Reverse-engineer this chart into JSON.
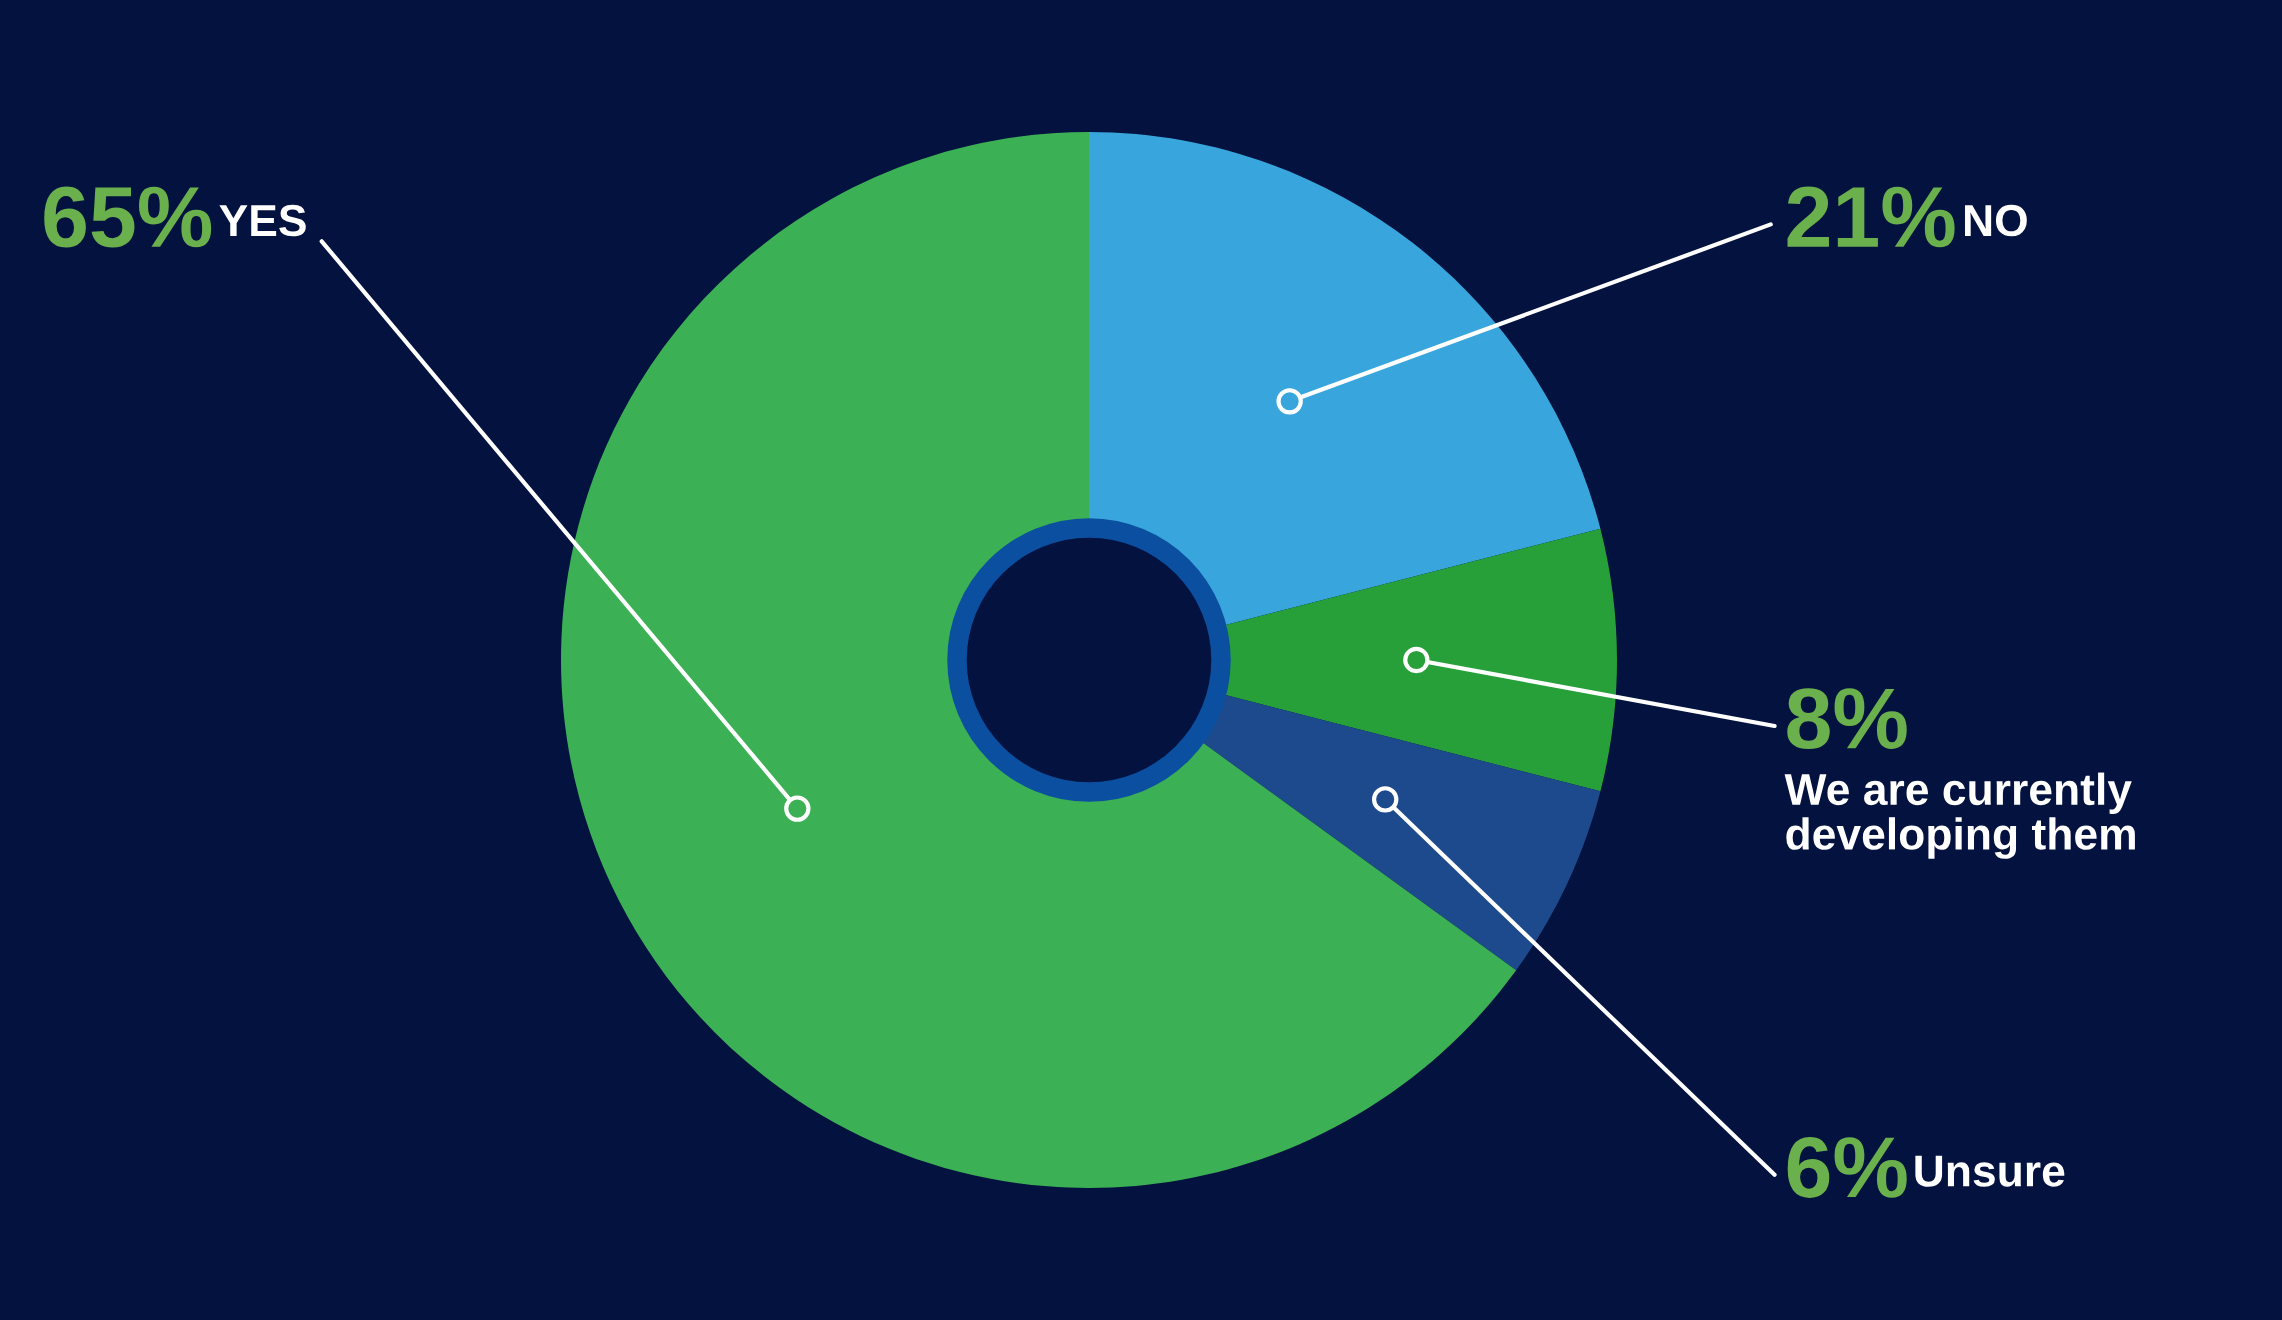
{
  "chart_data": {
    "type": "donut",
    "categories": [
      "NO",
      "We are currently\ndeveloping them",
      "Unsure",
      "YES"
    ],
    "values": [
      21,
      8,
      6,
      65
    ],
    "colors": [
      "#38a6dc",
      "#28a03a",
      "#1d4a8c",
      "#3cb054"
    ],
    "value_labels": [
      "21%",
      "8%",
      "6%",
      "65%"
    ]
  }
}
